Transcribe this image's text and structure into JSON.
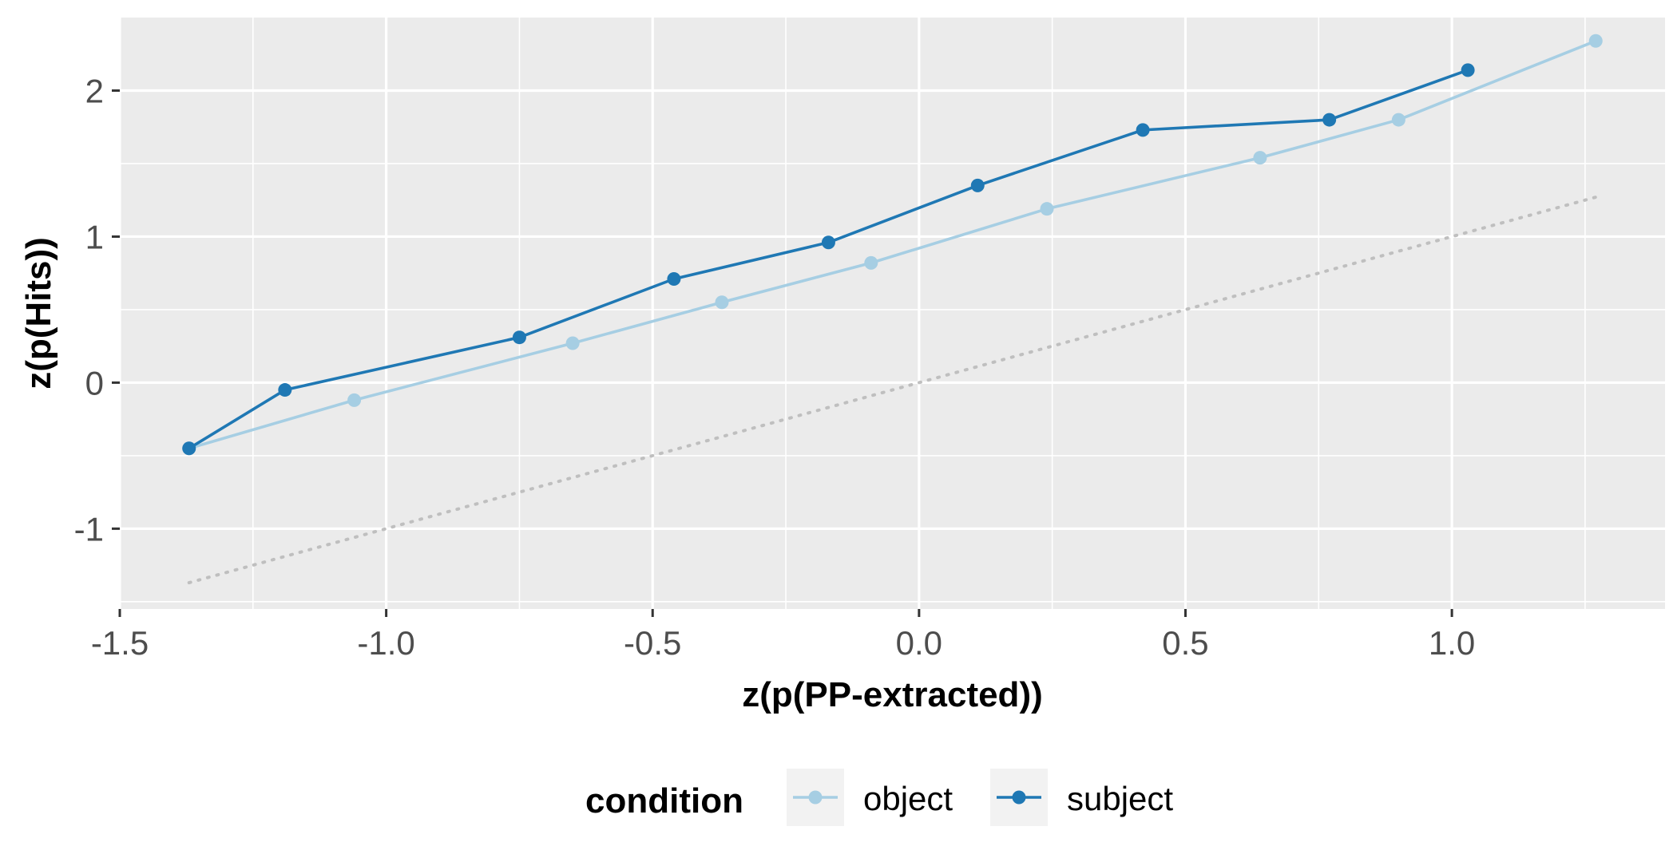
{
  "chart_data": {
    "type": "line",
    "xlabel": "z(p(PP-extracted))",
    "ylabel": "z(p(Hits))",
    "xlim": [
      -1.5,
      1.4
    ],
    "ylim": [
      -1.55,
      2.5
    ],
    "x_ticks": [
      -1.5,
      -1.0,
      -0.5,
      0.0,
      0.5,
      1.0
    ],
    "x_tick_labels": [
      "-1.5",
      "-1.0",
      "-0.5",
      "0.0",
      "0.5",
      "1.0"
    ],
    "y_ticks": [
      -1,
      0,
      1,
      2
    ],
    "y_tick_labels": [
      "-1",
      "0",
      "1",
      "2"
    ],
    "grid": true,
    "panel_background": "#ebebeb",
    "legend": {
      "title": "condition",
      "position": "bottom"
    },
    "reference_line": {
      "style": "dotted",
      "color": "#bfbfbf",
      "x": [
        -1.37,
        1.27
      ],
      "y": [
        -1.37,
        1.27
      ]
    },
    "series": [
      {
        "name": "object",
        "color": "#a6cee3",
        "x": [
          -1.37,
          -1.06,
          -0.65,
          -0.37,
          -0.09,
          0.24,
          0.64,
          0.9,
          1.27
        ],
        "y": [
          -0.45,
          -0.12,
          0.27,
          0.55,
          0.82,
          1.19,
          1.54,
          1.8,
          2.34
        ]
      },
      {
        "name": "subject",
        "color": "#1f78b4",
        "x": [
          -1.37,
          -1.19,
          -0.75,
          -0.46,
          -0.17,
          0.11,
          0.42,
          0.77,
          1.03
        ],
        "y": [
          -0.45,
          -0.05,
          0.31,
          0.71,
          0.96,
          1.35,
          1.73,
          1.8,
          2.14
        ]
      }
    ]
  }
}
